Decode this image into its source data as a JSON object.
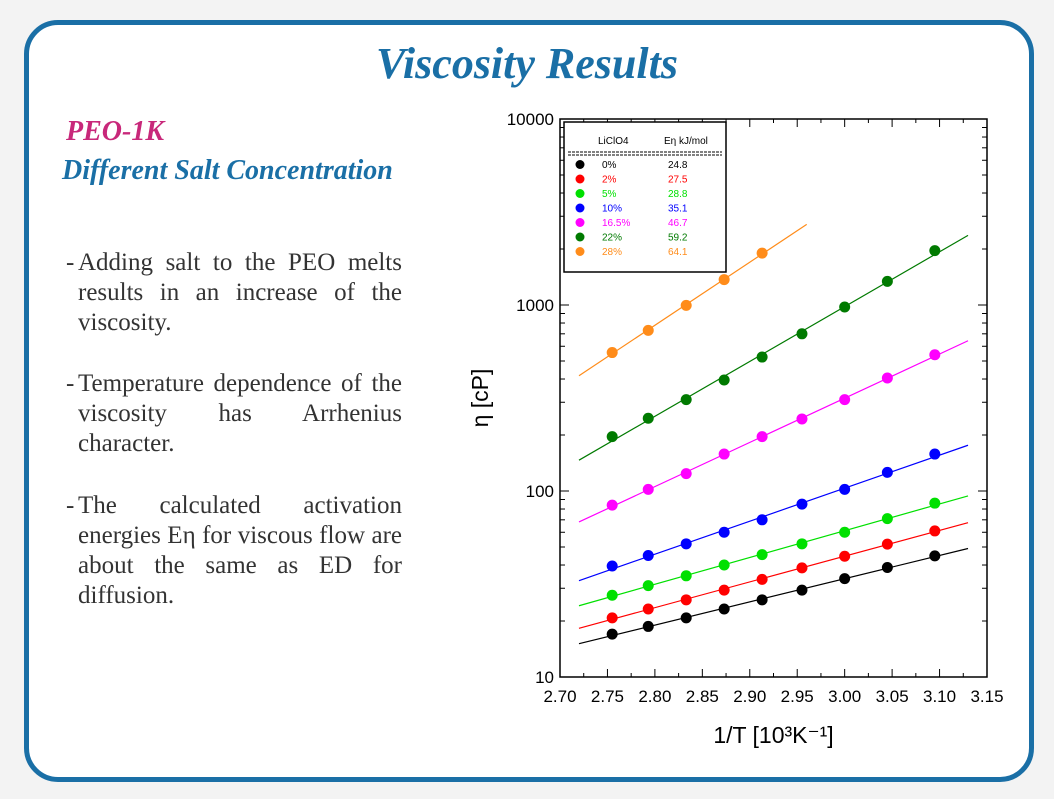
{
  "slide": {
    "title": "Viscosity Results",
    "subtitle_line1": "PEO-1K",
    "subtitle_line2": "Different Salt Concentration",
    "bullets": [
      "Adding salt to the PEO melts results in an increase of the viscosity.",
      "Temperature dependence of the viscosity has Arrhenius character.",
      "The calculated activation energies Eη for viscous flow are about the same as ED for diffusion."
    ],
    "bullet_dash": "-"
  },
  "colors": {
    "frame": "#1a6fa6",
    "title": "#1a6fa6",
    "subtitle_pink": "#c8287a"
  },
  "chart_data": {
    "type": "scatter",
    "title": "",
    "xlabel": "1/T [10³K⁻¹]",
    "ylabel": "η [cP]",
    "xlim": [
      2.7,
      3.15
    ],
    "ylim": [
      10,
      10000
    ],
    "yscale": "log",
    "xticks": [
      "2.70",
      "2.75",
      "2.80",
      "2.85",
      "2.90",
      "2.95",
      "3.00",
      "3.05",
      "3.10",
      "3.15"
    ],
    "yticks": [
      "10",
      "100",
      "1000",
      "10000"
    ],
    "legend": {
      "placement": "top-left",
      "header_salt": "LiClO4",
      "header_energy": "Eη kJ/mol"
    },
    "series": [
      {
        "name": "0%",
        "energy": "24.8",
        "color": "#000000",
        "x": [
          2.755,
          2.793,
          2.833,
          2.873,
          2.913,
          2.955,
          3.0,
          3.045,
          3.095
        ],
        "y": [
          17,
          18.7,
          20.8,
          23.2,
          26,
          29.3,
          33.8,
          38.8,
          44.8
        ],
        "fit": [
          2.72,
          3.13
        ]
      },
      {
        "name": "2%",
        "energy": "27.5",
        "color": "#ff0000",
        "x": [
          2.755,
          2.793,
          2.833,
          2.873,
          2.913,
          2.955,
          3.0,
          3.045,
          3.095
        ],
        "y": [
          20.8,
          23.2,
          26,
          29.3,
          33.5,
          38.6,
          44.6,
          51.8,
          61
        ],
        "fit": [
          2.72,
          3.13
        ]
      },
      {
        "name": "5%",
        "energy": "28.8",
        "color": "#00e000",
        "x": [
          2.755,
          2.793,
          2.833,
          2.873,
          2.913,
          2.955,
          3.0,
          3.045,
          3.095
        ],
        "y": [
          27.5,
          31,
          35,
          40,
          45.5,
          52,
          60,
          71,
          86
        ],
        "fit": [
          2.72,
          3.13
        ]
      },
      {
        "name": "10%",
        "energy": "35.1",
        "color": "#0000ff",
        "x": [
          2.755,
          2.793,
          2.833,
          2.873,
          2.913,
          2.955,
          3.0,
          3.045,
          3.095
        ],
        "y": [
          39.5,
          45,
          52,
          60,
          70,
          85,
          102,
          126,
          158
        ],
        "fit": [
          2.72,
          3.13
        ]
      },
      {
        "name": "16.5%",
        "energy": "46.7",
        "color": "#ff00ff",
        "x": [
          2.755,
          2.793,
          2.833,
          2.873,
          2.913,
          2.955,
          3.0,
          3.045,
          3.095
        ],
        "y": [
          84,
          102,
          124,
          158,
          196,
          244,
          310,
          405,
          540
        ],
        "fit": [
          2.72,
          3.13
        ]
      },
      {
        "name": "22%",
        "energy": "59.2",
        "color": "#007a00",
        "x": [
          2.755,
          2.793,
          2.833,
          2.873,
          2.913,
          2.955,
          3.0,
          3.045,
          3.095
        ],
        "y": [
          196,
          246,
          310,
          395,
          525,
          700,
          975,
          1340,
          1960
        ],
        "fit": [
          2.72,
          3.13
        ]
      },
      {
        "name": "28%",
        "energy": "64.1",
        "color": "#ff8c1a",
        "x": [
          2.755,
          2.793,
          2.833,
          2.873,
          2.913
        ],
        "y": [
          555,
          730,
          995,
          1370,
          1900
        ],
        "fit": [
          2.72,
          2.96
        ]
      }
    ]
  }
}
